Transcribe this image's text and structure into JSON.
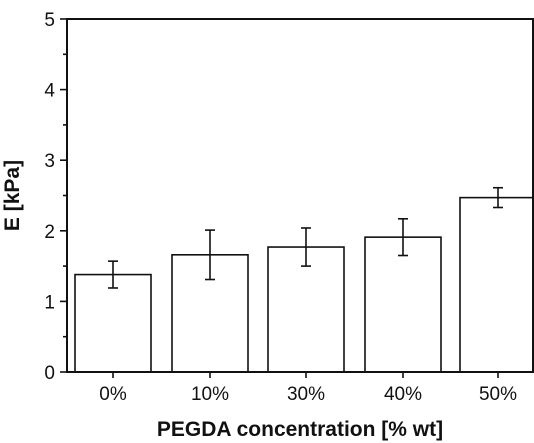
{
  "chart_data": {
    "type": "bar",
    "categories": [
      "0%",
      "10%",
      "30%",
      "40%",
      "50%"
    ],
    "values": [
      1.38,
      1.66,
      1.77,
      1.91,
      2.47
    ],
    "errors": [
      0.19,
      0.35,
      0.27,
      0.26,
      0.14
    ],
    "xlabel": "PEGDA concentration [% wt]",
    "ylabel": "E [kPa]",
    "ylim": [
      0,
      5
    ],
    "yticks": [
      "0",
      "1",
      "2",
      "3",
      "4",
      "5"
    ],
    "grid": false,
    "bar_color": "#ffffff",
    "edge_color": "#111111"
  }
}
